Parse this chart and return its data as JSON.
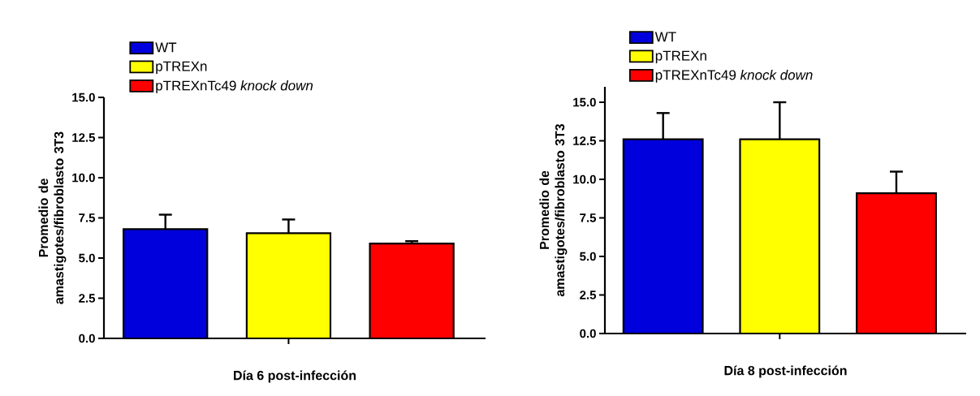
{
  "chart_data": [
    {
      "type": "bar",
      "xlabel": "Día 6 post-infección",
      "ylabel": "Promedio de amastigotes/fibroblasto 3T3",
      "categories": [
        null
      ],
      "series": [
        {
          "name": "WT",
          "color": "#0000dd",
          "values": [
            6.8
          ],
          "errors": [
            0.9
          ]
        },
        {
          "name": "pTREXn",
          "color": "#ffff00",
          "values": [
            6.55
          ],
          "errors": [
            0.85
          ]
        },
        {
          "name": "pTREXnTc49 *knock down*",
          "color": "#ff0000",
          "values": [
            5.9
          ],
          "errors": [
            0.15
          ]
        }
      ],
      "ylim": [
        0,
        15
      ],
      "yticks": [
        {
          "value": 0,
          "label": "0.0"
        },
        {
          "value": 2.5,
          "label": "2.5"
        },
        {
          "value": 5,
          "label": "5.0"
        },
        {
          "value": 7.5,
          "label": "7.5"
        },
        {
          "value": 10,
          "label": "10.0"
        },
        {
          "value": 12.5,
          "label": "12.5"
        },
        {
          "value": 15,
          "label": "15.0"
        }
      ],
      "legend": "top left"
    },
    {
      "type": "bar",
      "xlabel": "Día 8 post-infección",
      "ylabel": "Promedio de amastigotes/fibroblasto 3T3",
      "categories": [
        null
      ],
      "series": [
        {
          "name": "WT",
          "color": "#0000dd",
          "values": [
            12.6
          ],
          "errors": [
            1.7
          ]
        },
        {
          "name": "pTREXn",
          "color": "#ffff00",
          "values": [
            12.6
          ],
          "errors": [
            2.4
          ]
        },
        {
          "name": "pTREXnTc49 *knock down*",
          "color": "#ff0000",
          "values": [
            9.1
          ],
          "errors": [
            1.4
          ]
        }
      ],
      "ylim": [
        0,
        16
      ],
      "yticks": [
        {
          "value": 0,
          "label": "0.0"
        },
        {
          "value": 2.5,
          "label": "2.5"
        },
        {
          "value": 5,
          "label": "5.0"
        },
        {
          "value": 7.5,
          "label": "7.5"
        },
        {
          "value": 10,
          "label": "10.0"
        },
        {
          "value": 12.5,
          "label": "12.5"
        },
        {
          "value": 15,
          "label": "15.0"
        }
      ],
      "legend": "top left"
    }
  ]
}
